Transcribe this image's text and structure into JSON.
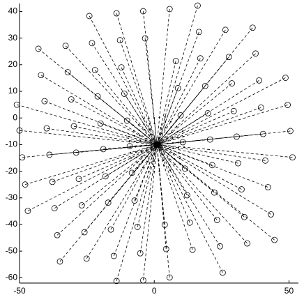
{
  "chart_data": {
    "type": "scatter",
    "xlim": [
      -50,
      53.5
    ],
    "ylim": [
      -62,
      43
    ],
    "xticks": [
      -50,
      0,
      50
    ],
    "yticks": [
      -60,
      -50,
      -40,
      -30,
      -20,
      -10,
      0,
      10,
      20,
      30,
      40
    ],
    "center": {
      "x": 1,
      "y": -10
    },
    "circles": {
      "x": [
        -24.1,
        -14,
        -4.1,
        5.7,
        16.1,
        -3.4,
        16.6,
        26.4,
        36.5,
        -43,
        -32.9,
        -23.1,
        -12.7,
        8,
        17.1,
        27.7,
        37.6,
        -42,
        -32.1,
        -22,
        -12.2,
        8.8,
        18.9,
        28.8,
        38.9,
        48.7,
        -40.7,
        -30.8,
        -21,
        -11.1,
        -51,
        9.8,
        19.9,
        29.5,
        39.6,
        49.5,
        -50,
        -39.9,
        -29.8,
        -19.9,
        -10.1,
        10.6,
        20.7,
        30.6,
        40.4,
        50.5,
        -49,
        -38.9,
        -29,
        -18.9,
        -9.1,
        11.4,
        21.5,
        31.1,
        41.2,
        51.3,
        -47.9,
        -37.8,
        -28,
        -18.1,
        -8.3,
        12.2,
        22.3,
        32.4,
        42.2,
        -46.9,
        -37,
        -26.9,
        -17.1,
        -7.3,
        13.2,
        23.3,
        33.4,
        43.3,
        -36,
        -25.9,
        -16.1,
        -6.2,
        3.9,
        14.2,
        24.4,
        34.5,
        44.6,
        -35,
        -25.1,
        -15,
        -5.2,
        4.4,
        25.4,
        -14,
        -4.1,
        5.7
      ],
      "y": [
        38.3,
        39.3,
        40.1,
        40.9,
        42.2,
        29.9,
        32.3,
        33.1,
        33.9,
        26,
        27.1,
        28.1,
        29.2,
        21.4,
        22.4,
        22.9,
        24.2,
        16.1,
        17.2,
        18,
        19,
        11.2,
        12,
        13,
        14.1,
        15.1,
        6.3,
        7,
        8.1,
        9.1,
        5,
        1,
        1.8,
        2.6,
        3.9,
        4.9,
        -4.7,
        -3.9,
        -3.1,
        -2.1,
        -1,
        -9.1,
        -8.1,
        -7,
        -6,
        -4.9,
        -14.8,
        -13.8,
        -13,
        -11.7,
        -10.6,
        -19,
        -17.7,
        -17,
        -16,
        -14.8,
        -25,
        -24,
        -22.9,
        -21.9,
        -20.6,
        -29,
        -28,
        -26.8,
        -26,
        -34.9,
        -33.9,
        -32.8,
        -31.8,
        -31,
        -39.3,
        -38.3,
        -37.2,
        -36.2,
        -44,
        -42.9,
        -41.9,
        -40.9,
        -40.1,
        -49.5,
        -48.2,
        -47.1,
        -45.8,
        -53.9,
        -52.8,
        -51.8,
        -50.8,
        -49.2,
        -58.1,
        -61.2,
        -61,
        -59.9
      ]
    },
    "dots": {
      "x": [
        -4.0,
        -2.0,
        0.0,
        1.9,
        4.0,
        0.1,
        4.1,
        6.1,
        8.1,
        -7.8,
        -5.8,
        -3.8,
        -1.7,
        2.4,
        4.2,
        6.3,
        8.3,
        -7.6,
        -5.6,
        -3.6,
        -1.6,
        2.6,
        4.6,
        6.6,
        8.6,
        10.5,
        -7.3,
        -5.4,
        -3.4,
        -1.4,
        -9.4,
        2.8,
        4.8,
        6.7,
        8.7,
        10.7,
        -9.2,
        -7.2,
        -5.2,
        -3.2,
        -1.2,
        2.9,
        4.9,
        6.9,
        8.9,
        10.9,
        -9.0,
        -7.0,
        -5.0,
        -3.0,
        -1.0,
        3.1,
        5.1,
        7.0,
        9.0,
        11.1,
        -8.8,
        -6.8,
        -4.8,
        -2.8,
        -0.9,
        3.2,
        5.3,
        7.3,
        9.2,
        -8.6,
        -6.6,
        -4.6,
        -2.6,
        -0.7,
        3.4,
        5.5,
        7.5,
        9.5,
        -6.4,
        -4.4,
        -2.4,
        -0.4,
        1.6,
        3.6,
        5.7,
        7.7,
        9.7,
        -6.2,
        -4.2,
        -2.2,
        -0.2,
        1.7,
        5.9,
        -2.0,
        0.0,
        1.9
      ],
      "y": [
        -0.3,
        -0.1,
        0.0,
        0.2,
        0.4,
        -2.0,
        -1.5,
        -1.4,
        -1.2,
        -2.8,
        -2.6,
        -2.4,
        -2.2,
        -3.7,
        -3.5,
        -3.4,
        -3.2,
        -4.8,
        -4.6,
        -4.4,
        -4.2,
        -5.8,
        -5.6,
        -5.4,
        -5.2,
        -5.0,
        -6.7,
        -6.6,
        -6.4,
        -6.2,
        -7.0,
        -7.8,
        -7.6,
        -7.5,
        -7.2,
        -7.0,
        -8.9,
        -8.8,
        -8.6,
        -8.4,
        -8.2,
        -9.8,
        -9.6,
        -9.4,
        -9.2,
        -9.0,
        -11.0,
        -10.8,
        -10.6,
        -10.3,
        -10.1,
        -11.8,
        -11.5,
        -11.4,
        -11.2,
        -11.0,
        -13.0,
        -12.8,
        -12.6,
        -12.4,
        -12.1,
        -13.8,
        -13.6,
        -13.4,
        -13.2,
        -15.0,
        -14.8,
        -14.6,
        -14.4,
        -14.2,
        -15.9,
        -15.7,
        -15.4,
        -15.2,
        -16.8,
        -16.6,
        -16.4,
        -16.2,
        -16.0,
        -17.9,
        -17.6,
        -17.4,
        -17.2,
        -18.8,
        -18.6,
        -18.4,
        -18.2,
        -17.8,
        -19.6,
        -20.2,
        -20.2,
        -20.0
      ]
    }
  }
}
